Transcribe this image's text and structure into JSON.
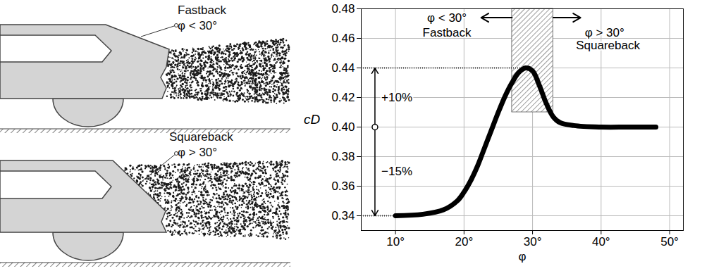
{
  "chart_data": {
    "type": "line",
    "x_label": "φ",
    "y_label": "cD",
    "x": [
      10,
      14,
      17,
      19,
      20,
      21,
      22,
      23,
      24,
      25,
      26,
      27,
      28,
      29,
      30,
      31,
      32,
      33,
      34,
      36,
      40,
      44,
      48
    ],
    "values": [
      0.34,
      0.341,
      0.344,
      0.35,
      0.356,
      0.364,
      0.374,
      0.386,
      0.398,
      0.41,
      0.421,
      0.43,
      0.437,
      0.44,
      0.438,
      0.428,
      0.416,
      0.407,
      0.403,
      0.401,
      0.4,
      0.4,
      0.4
    ],
    "color": "#000000",
    "xlim": [
      5,
      52
    ],
    "ylim": [
      0.33,
      0.48
    ],
    "xticks": [
      {
        "value": 10,
        "label": "10°"
      },
      {
        "value": 20,
        "label": "20°"
      },
      {
        "value": 30,
        "label": "30°"
      },
      {
        "value": 40,
        "label": "40°"
      },
      {
        "value": 50,
        "label": "50°"
      }
    ],
    "yticks": [
      0.34,
      0.36,
      0.38,
      {
        "value": 0.4,
        "label": "0.40"
      },
      0.42,
      0.44,
      0.46,
      0.48
    ],
    "grid": true,
    "band": {
      "x": [
        27,
        33
      ],
      "y": [
        0.41,
        0.48
      ]
    },
    "reference_lines": [
      {
        "y": 0.44,
        "x": [
          5,
          29
        ]
      },
      {
        "y": 0.34,
        "x": [
          5,
          10
        ]
      }
    ],
    "bracket": {
      "x": 7,
      "y": [
        0.34,
        0.44
      ],
      "mid": 0.4
    },
    "range_arrows": [
      {
        "x": [
          27,
          22.5
        ],
        "y": 0.474
      },
      {
        "x": [
          33,
          37
        ],
        "y": 0.474
      }
    ],
    "annotations": [
      {
        "text": "φ < 30°",
        "x": 17.5,
        "y": 0.474
      },
      {
        "text": "Fastback",
        "x": 17.5,
        "y": 0.464
      },
      {
        "text": "φ > 30°",
        "x": 40.5,
        "y": 0.464
      },
      {
        "text": "Squareback",
        "x": 41,
        "y": 0.455
      },
      {
        "text": "+10%",
        "x": 10.2,
        "y": 0.42
      },
      {
        "text": "−15%",
        "x": 10.2,
        "y": 0.37
      }
    ]
  },
  "illustrations": [
    {
      "label": "Fastback",
      "angle_label": "φ < 30°"
    },
    {
      "label": "Squareback",
      "angle_label": "φ > 30°"
    }
  ]
}
